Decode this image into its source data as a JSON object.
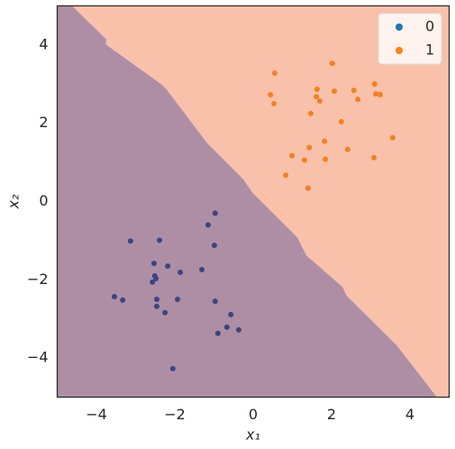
{
  "chart_data": {
    "type": "scatter",
    "xlabel": "x₁",
    "ylabel": "x₂",
    "xlim": [
      -5,
      5
    ],
    "ylim": [
      -5,
      5
    ],
    "xticks": [
      {
        "value": -4,
        "label": "−4"
      },
      {
        "value": -2,
        "label": "−2"
      },
      0,
      2,
      4
    ],
    "yticks": [
      {
        "value": -4,
        "label": "−4"
      },
      {
        "value": -2,
        "label": "−2"
      },
      0,
      2,
      4
    ],
    "legend": "upper right",
    "regions": {
      "colors": [
        "#ad8ea5",
        "#f9c1aa"
      ],
      "boundary": {
        "x": [
          -4.62,
          -3.75,
          -3.75,
          -2.32,
          -2.21,
          -1.17,
          -0.25,
          -0.02,
          1.13,
          1.36,
          2.28,
          2.39,
          3.66,
          4.69
        ],
        "y": [
          5,
          4.15,
          4.01,
          2.98,
          2.87,
          1.49,
          0.57,
          0.23,
          -0.92,
          -1.38,
          -2.18,
          -2.41,
          -3.67,
          -5
        ]
      }
    },
    "series": [
      {
        "name": "0",
        "color": "#1f77b4",
        "mark_color": "#3a4583",
        "x": [
          -0.97,
          -1.15,
          -3.13,
          -2.39,
          -0.99,
          -2.53,
          -2.18,
          -1.31,
          -1.86,
          -2.51,
          -2.48,
          -2.57,
          -3.54,
          -3.33,
          -2.46,
          -1.93,
          -0.97,
          -2.46,
          -2.25,
          -0.57,
          -0.67,
          -0.37,
          -0.9,
          -2.05
        ],
        "values": [
          -0.3,
          -0.6,
          -1.01,
          -0.99,
          -1.12,
          -1.58,
          -1.65,
          -1.74,
          -1.81,
          -1.9,
          -1.97,
          -2.06,
          -2.43,
          -2.52,
          -2.5,
          -2.5,
          -2.55,
          -2.68,
          -2.84,
          -2.89,
          -3.21,
          -3.28,
          -3.37,
          -4.27
        ]
      },
      {
        "name": "1",
        "color": "#ff7f0e",
        "mark_color": "#f57f20",
        "x": [
          2.02,
          0.55,
          1.63,
          2.07,
          2.57,
          0.44,
          1.61,
          3.1,
          3.13,
          3.24,
          1.7,
          2.67,
          0.53,
          1.47,
          2.25,
          3.56,
          1.82,
          1.43,
          2.41,
          0.99,
          1.31,
          1.84,
          3.08,
          0.83,
          1.4
        ],
        "values": [
          3.53,
          3.28,
          2.87,
          2.82,
          2.84,
          2.73,
          2.68,
          3.0,
          2.75,
          2.73,
          2.57,
          2.61,
          2.5,
          2.25,
          2.04,
          1.63,
          1.54,
          1.38,
          1.33,
          1.17,
          1.06,
          1.08,
          1.12,
          0.67,
          0.34
        ]
      }
    ]
  }
}
